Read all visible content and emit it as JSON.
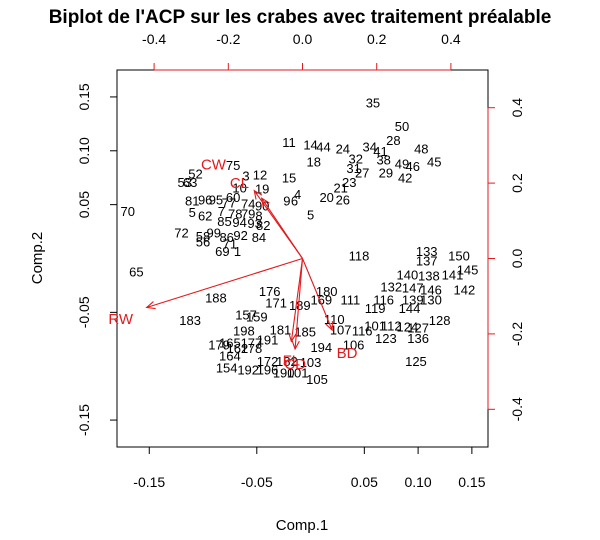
{
  "chart_data": {
    "type": "scatter",
    "title": "Biplot de l'ACP sur les crabes avec traitement préalable",
    "xlabel": "Comp.1",
    "ylabel": "Comp.2",
    "xlim": [
      -0.18,
      0.165
    ],
    "ylim": [
      -0.175,
      0.175
    ],
    "secondary_xlim": [
      -0.5,
      0.5
    ],
    "secondary_ylim": [
      -0.5,
      0.5
    ],
    "x_ticks": [
      "-0.15",
      "-0.05",
      "0.05",
      "0.10",
      "0.15"
    ],
    "x_tick_values": [
      -0.15,
      -0.05,
      0.05,
      0.1,
      0.15
    ],
    "y_ticks": [
      "-0.15",
      "-0.05",
      "0.05",
      "0.10",
      "0.15"
    ],
    "y_tick_values": [
      -0.15,
      -0.05,
      0.05,
      0.1,
      0.15
    ],
    "secondary_x_ticks": [
      "-0.4",
      "-0.2",
      "0.0",
      "0.2",
      "0.4"
    ],
    "secondary_x_tick_values": [
      -0.4,
      -0.2,
      0.0,
      0.2,
      0.4
    ],
    "secondary_y_ticks": [
      "-0.4",
      "-0.2",
      "0.0",
      "0.2",
      "0.4"
    ],
    "secondary_y_tick_values": [
      -0.4,
      -0.2,
      0.0,
      0.2,
      0.4
    ],
    "colors": {
      "observations": "#000000",
      "variables": "#e31a1c",
      "frame": "#000000"
    },
    "variables": [
      {
        "name": "RW",
        "x": -0.42,
        "y": -0.13,
        "label_x": -0.49,
        "label_y": -0.16
      },
      {
        "name": "CW",
        "x": -0.13,
        "y": 0.18,
        "label_x": -0.24,
        "label_y": 0.25
      },
      {
        "name": "CL",
        "x": -0.11,
        "y": 0.16,
        "label_x": -0.17,
        "label_y": 0.2
      },
      {
        "name": "FL",
        "x": -0.03,
        "y": -0.22,
        "label_x": -0.03,
        "label_y": -0.27
      },
      {
        "name": "CD",
        "x": -0.02,
        "y": -0.24,
        "label_x": -0.02,
        "label_y": -0.28
      },
      {
        "name": "BD",
        "x": 0.08,
        "y": -0.19,
        "label_x": 0.12,
        "label_y": -0.25
      }
    ],
    "points": [
      {
        "label": "35",
        "x": 0.058,
        "y": 0.145
      },
      {
        "label": "50",
        "x": 0.085,
        "y": 0.123
      },
      {
        "label": "28",
        "x": 0.077,
        "y": 0.11
      },
      {
        "label": "48",
        "x": 0.103,
        "y": 0.102
      },
      {
        "label": "45",
        "x": 0.115,
        "y": 0.09
      },
      {
        "label": "11",
        "x": -0.02,
        "y": 0.108
      },
      {
        "label": "14",
        "x": 0.0,
        "y": 0.106
      },
      {
        "label": "44",
        "x": 0.012,
        "y": 0.104
      },
      {
        "label": "24",
        "x": 0.03,
        "y": 0.102
      },
      {
        "label": "34",
        "x": 0.055,
        "y": 0.104
      },
      {
        "label": "41",
        "x": 0.065,
        "y": 0.1
      },
      {
        "label": "32",
        "x": 0.042,
        "y": 0.093
      },
      {
        "label": "38",
        "x": 0.068,
        "y": 0.092
      },
      {
        "label": "18",
        "x": 0.003,
        "y": 0.09
      },
      {
        "label": "31",
        "x": 0.04,
        "y": 0.084
      },
      {
        "label": "49",
        "x": 0.085,
        "y": 0.088
      },
      {
        "label": "46",
        "x": 0.095,
        "y": 0.086
      },
      {
        "label": "27",
        "x": 0.048,
        "y": 0.08
      },
      {
        "label": "29",
        "x": 0.07,
        "y": 0.08
      },
      {
        "label": "42",
        "x": 0.088,
        "y": 0.075
      },
      {
        "label": "23",
        "x": 0.036,
        "y": 0.071
      },
      {
        "label": "21",
        "x": 0.028,
        "y": 0.066
      },
      {
        "label": "75",
        "x": -0.072,
        "y": 0.087
      },
      {
        "label": "52",
        "x": -0.107,
        "y": 0.079
      },
      {
        "label": "3",
        "x": -0.06,
        "y": 0.077
      },
      {
        "label": "12",
        "x": -0.047,
        "y": 0.078
      },
      {
        "label": "15",
        "x": -0.02,
        "y": 0.075
      },
      {
        "label": "53",
        "x": -0.117,
        "y": 0.071
      },
      {
        "label": "63",
        "x": -0.112,
        "y": 0.071
      },
      {
        "label": "10",
        "x": -0.066,
        "y": 0.066
      },
      {
        "label": "19",
        "x": -0.045,
        "y": 0.065
      },
      {
        "label": "60",
        "x": -0.072,
        "y": 0.057
      },
      {
        "label": "4",
        "x": -0.012,
        "y": 0.06
      },
      {
        "label": "20",
        "x": 0.015,
        "y": 0.057
      },
      {
        "label": "26",
        "x": 0.03,
        "y": 0.055
      },
      {
        "label": "9",
        "x": -0.022,
        "y": 0.054
      },
      {
        "label": "6",
        "x": -0.015,
        "y": 0.054
      },
      {
        "label": "81",
        "x": -0.11,
        "y": 0.054
      },
      {
        "label": "96",
        "x": -0.098,
        "y": 0.055
      },
      {
        "label": "95",
        "x": -0.088,
        "y": 0.055
      },
      {
        "label": "77",
        "x": -0.076,
        "y": 0.052
      },
      {
        "label": "74",
        "x": -0.058,
        "y": 0.051
      },
      {
        "label": "90",
        "x": -0.045,
        "y": 0.049
      },
      {
        "label": "70",
        "x": -0.17,
        "y": 0.044
      },
      {
        "label": "5",
        "x": -0.11,
        "y": 0.043
      },
      {
        "label": "62",
        "x": -0.098,
        "y": 0.04
      },
      {
        "label": "7",
        "x": -0.083,
        "y": 0.044
      },
      {
        "label": "78",
        "x": -0.07,
        "y": 0.042
      },
      {
        "label": "79",
        "x": -0.058,
        "y": 0.042
      },
      {
        "label": "8",
        "x": -0.048,
        "y": 0.04
      },
      {
        "label": "5",
        "x": 0.0,
        "y": 0.041
      },
      {
        "label": "85",
        "x": -0.08,
        "y": 0.035
      },
      {
        "label": "94",
        "x": -0.066,
        "y": 0.034
      },
      {
        "label": "93",
        "x": -0.052,
        "y": 0.033
      },
      {
        "label": "82",
        "x": -0.044,
        "y": 0.031
      },
      {
        "label": "72",
        "x": -0.12,
        "y": 0.024
      },
      {
        "label": "58",
        "x": -0.1,
        "y": 0.021
      },
      {
        "label": "99",
        "x": -0.09,
        "y": 0.024
      },
      {
        "label": "56",
        "x": -0.1,
        "y": 0.016
      },
      {
        "label": "86",
        "x": -0.078,
        "y": 0.02
      },
      {
        "label": "92",
        "x": -0.065,
        "y": 0.022
      },
      {
        "label": "84",
        "x": -0.048,
        "y": 0.02
      },
      {
        "label": "71",
        "x": -0.075,
        "y": 0.014
      },
      {
        "label": "69",
        "x": -0.082,
        "y": 0.007
      },
      {
        "label": "1",
        "x": -0.068,
        "y": 0.007
      },
      {
        "label": "65",
        "x": -0.162,
        "y": -0.012
      },
      {
        "label": "118",
        "x": 0.045,
        "y": 0.003
      },
      {
        "label": "133",
        "x": 0.108,
        "y": 0.007
      },
      {
        "label": "150",
        "x": 0.138,
        "y": 0.003
      },
      {
        "label": "137",
        "x": 0.108,
        "y": -0.002
      },
      {
        "label": "145",
        "x": 0.146,
        "y": -0.01
      },
      {
        "label": "140",
        "x": 0.09,
        "y": -0.015
      },
      {
        "label": "138",
        "x": 0.11,
        "y": -0.016
      },
      {
        "label": "141",
        "x": 0.132,
        "y": -0.015
      },
      {
        "label": "132",
        "x": 0.075,
        "y": -0.026
      },
      {
        "label": "147",
        "x": 0.095,
        "y": -0.027
      },
      {
        "label": "146",
        "x": 0.112,
        "y": -0.029
      },
      {
        "label": "142",
        "x": 0.143,
        "y": -0.029
      },
      {
        "label": "176",
        "x": -0.038,
        "y": -0.03
      },
      {
        "label": "180",
        "x": 0.015,
        "y": -0.03
      },
      {
        "label": "188",
        "x": -0.088,
        "y": -0.036
      },
      {
        "label": "171",
        "x": -0.032,
        "y": -0.041
      },
      {
        "label": "189",
        "x": -0.01,
        "y": -0.043
      },
      {
        "label": "169",
        "x": 0.01,
        "y": -0.038
      },
      {
        "label": "111",
        "x": 0.037,
        "y": -0.038
      },
      {
        "label": "116",
        "x": 0.068,
        "y": -0.038
      },
      {
        "label": "139",
        "x": 0.095,
        "y": -0.038
      },
      {
        "label": "130",
        "x": 0.112,
        "y": -0.038
      },
      {
        "label": "119",
        "x": 0.06,
        "y": -0.046
      },
      {
        "label": "144",
        "x": 0.092,
        "y": -0.046
      },
      {
        "label": "183",
        "x": -0.112,
        "y": -0.057
      },
      {
        "label": "157",
        "x": -0.06,
        "y": -0.052
      },
      {
        "label": "159",
        "x": -0.05,
        "y": -0.054
      },
      {
        "label": "110",
        "x": 0.022,
        "y": -0.056
      },
      {
        "label": "128",
        "x": 0.12,
        "y": -0.057
      },
      {
        "label": "101",
        "x": 0.06,
        "y": -0.062
      },
      {
        "label": "112",
        "x": 0.075,
        "y": -0.062
      },
      {
        "label": "124",
        "x": 0.09,
        "y": -0.063
      },
      {
        "label": "127",
        "x": 0.1,
        "y": -0.064
      },
      {
        "label": "107",
        "x": 0.028,
        "y": -0.066
      },
      {
        "label": "116",
        "x": 0.048,
        "y": -0.067
      },
      {
        "label": "198",
        "x": -0.062,
        "y": -0.067
      },
      {
        "label": "181",
        "x": -0.028,
        "y": -0.066
      },
      {
        "label": "185",
        "x": -0.005,
        "y": -0.068
      },
      {
        "label": "123",
        "x": 0.07,
        "y": -0.074
      },
      {
        "label": "136",
        "x": 0.1,
        "y": -0.074
      },
      {
        "label": "179",
        "x": -0.085,
        "y": -0.08
      },
      {
        "label": "165",
        "x": -0.075,
        "y": -0.078
      },
      {
        "label": "177",
        "x": -0.055,
        "y": -0.078
      },
      {
        "label": "191",
        "x": -0.04,
        "y": -0.075
      },
      {
        "label": "162",
        "x": -0.068,
        "y": -0.083
      },
      {
        "label": "178",
        "x": -0.055,
        "y": -0.083
      },
      {
        "label": "106",
        "x": 0.04,
        "y": -0.08
      },
      {
        "label": "194",
        "x": 0.01,
        "y": -0.082
      },
      {
        "label": "164",
        "x": -0.075,
        "y": -0.09
      },
      {
        "label": "125",
        "x": 0.098,
        "y": -0.095
      },
      {
        "label": "172",
        "x": -0.04,
        "y": -0.095
      },
      {
        "label": "182",
        "x": -0.022,
        "y": -0.095
      },
      {
        "label": "103",
        "x": 0.0,
        "y": -0.096
      },
      {
        "label": "154",
        "x": -0.078,
        "y": -0.101
      },
      {
        "label": "192",
        "x": -0.058,
        "y": -0.103
      },
      {
        "label": "196",
        "x": -0.04,
        "y": -0.103
      },
      {
        "label": "190",
        "x": -0.025,
        "y": -0.106
      },
      {
        "label": "101",
        "x": -0.012,
        "y": -0.106
      },
      {
        "label": "105",
        "x": 0.006,
        "y": -0.112
      }
    ]
  }
}
